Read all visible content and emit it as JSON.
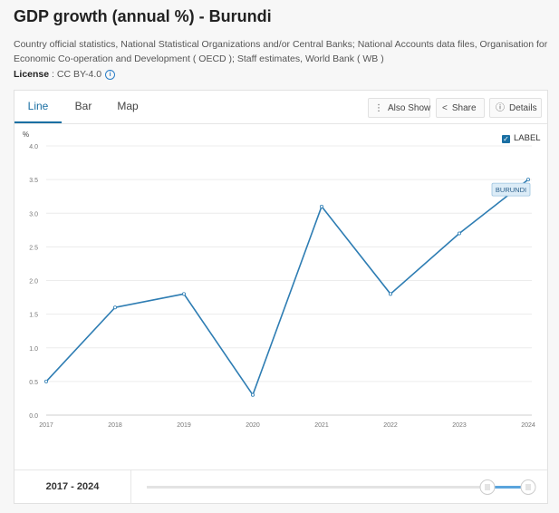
{
  "header": {
    "title": "GDP growth (annual %) - Burundi",
    "source": "Country official statistics, National Statistical Organizations and/or Central Banks; National Accounts data files, Organisation for Economic Co-operation and Development ( OECD ); Staff estimates, World Bank ( WB )",
    "license_label": "License",
    "license_value": " : CC BY-4.0"
  },
  "tabs": [
    {
      "label": "Line",
      "active": true
    },
    {
      "label": "Bar",
      "active": false
    },
    {
      "label": "Map",
      "active": false
    }
  ],
  "toolbar": {
    "also_show": "Also Show",
    "share": "Share",
    "details": "Details"
  },
  "legend": {
    "label_toggle": "LABEL",
    "label_checked": true
  },
  "footer": {
    "range": "2017 - 2024"
  },
  "colors": {
    "line": "#2e7db3",
    "accent": "#1a6fa3",
    "label_bg": "#dcecf7"
  },
  "chart_data": {
    "type": "line",
    "title": "",
    "xlabel": "",
    "ylabel": "%",
    "x": [
      "2017",
      "2018",
      "2019",
      "2020",
      "2021",
      "2022",
      "2023",
      "2024"
    ],
    "ylim": [
      0,
      4.0
    ],
    "yticks": [
      "0.0",
      "0.5",
      "1.0",
      "1.5",
      "2.0",
      "2.5",
      "3.0",
      "3.5",
      "4.0"
    ],
    "grid": true,
    "series": [
      {
        "name": "BURUNDI",
        "values": [
          0.5,
          1.6,
          1.8,
          0.3,
          3.1,
          1.8,
          2.7,
          3.5
        ]
      }
    ]
  }
}
